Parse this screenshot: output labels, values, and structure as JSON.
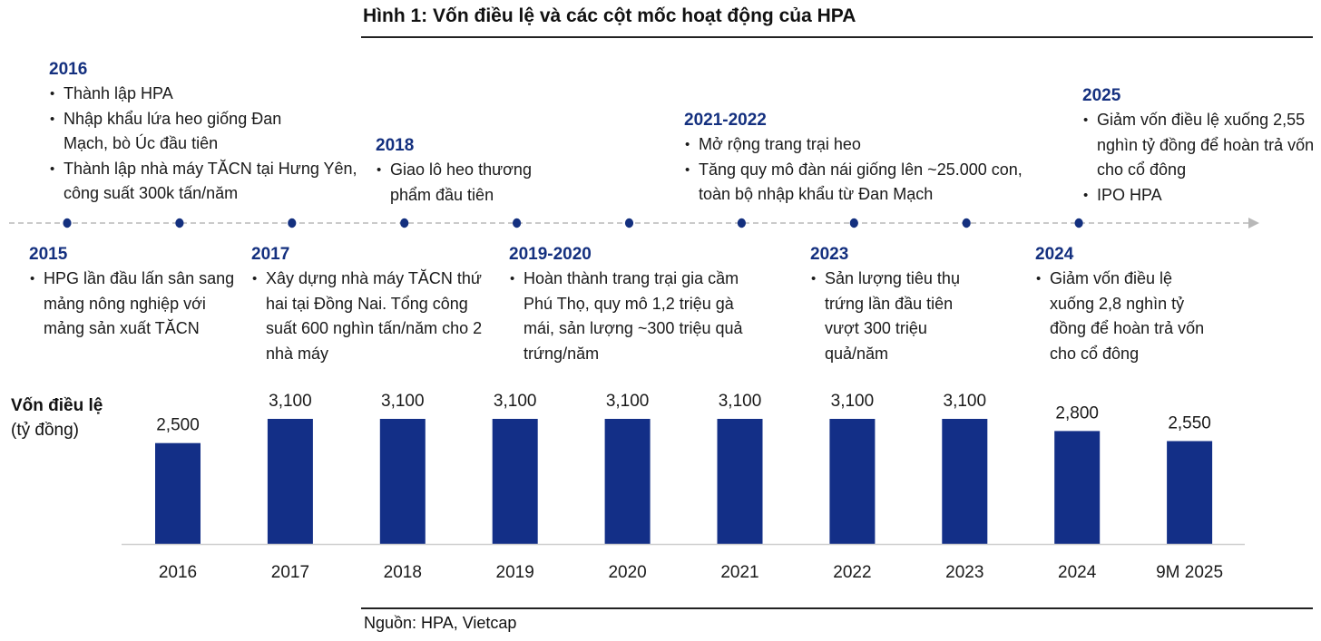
{
  "title": "Hình 1: Vốn điều lệ và các cột mốc hoạt động của HPA",
  "source": "Nguồn: HPA, Vietcap",
  "colors": {
    "accent": "#14307f",
    "bar": "#132f87",
    "timeline": "#b8b8b8",
    "axis": "#d0d0d0"
  },
  "timeline": {
    "icons": [
      "timeline-dot-icon",
      "arrow-right-icon"
    ],
    "events_above": [
      {
        "year": "2016",
        "items": [
          "Thành lập HPA",
          "Nhập khẩu lứa heo giống Đan Mạch, bò Úc đầu tiên",
          "Thành lập nhà máy TĂCN tại Hưng Yên, công suất 300k tấn/năm"
        ]
      },
      {
        "year": "2018",
        "items": [
          "Giao lô heo thương phẩm đầu tiên"
        ]
      },
      {
        "year": "2021-2022",
        "items": [
          "Mở rộng trang trại heo",
          "Tăng quy mô đàn nái giống lên ~25.000 con, toàn bộ nhập khẩu từ Đan Mạch"
        ]
      },
      {
        "year": "2025",
        "items": [
          "Giảm vốn điều lệ xuống 2,55 nghìn tỷ đồng để hoàn trả vốn cho cổ đông",
          "IPO HPA"
        ]
      }
    ],
    "events_below": [
      {
        "year": "2015",
        "items": [
          "HPG lần đầu lấn sân sang mảng nông nghiệp với mảng sản xuất TĂCN"
        ]
      },
      {
        "year": "2017",
        "items": [
          "Xây dựng nhà máy TĂCN thứ hai tại Đồng Nai. Tổng công suất 600 nghìn tấn/năm cho 2 nhà máy"
        ]
      },
      {
        "year": "2019-2020",
        "items": [
          "Hoàn thành trang trại gia cầm Phú Thọ, quy mô 1,2 triệu gà mái, sản lượng ~300 triệu quả trứng/năm"
        ]
      },
      {
        "year": "2023",
        "items": [
          "Sản lượng tiêu thụ trứng lần đầu tiên vượt 300 triệu quả/năm"
        ]
      },
      {
        "year": "2024",
        "items": [
          "Giảm vốn điều lệ xuống 2,8 nghìn tỷ đồng để hoàn trả vốn cho cổ đông"
        ]
      }
    ]
  },
  "chart_data": {
    "type": "bar",
    "title": "",
    "ylabel": "Vốn điều lệ",
    "yunit": "(tỷ đồng)",
    "xlabel": "",
    "categories": [
      "2016",
      "2017",
      "2018",
      "2019",
      "2020",
      "2021",
      "2022",
      "2023",
      "2024",
      "9M 2025"
    ],
    "values": [
      2500,
      3100,
      3100,
      3100,
      3100,
      3100,
      3100,
      3100,
      2800,
      2550
    ],
    "data_labels": [
      "2,500",
      "3,100",
      "3,100",
      "3,100",
      "3,100",
      "3,100",
      "3,100",
      "3,100",
      "2,800",
      "2,550"
    ],
    "ylim": [
      0,
      3100
    ],
    "grid": false,
    "legend": "none"
  }
}
